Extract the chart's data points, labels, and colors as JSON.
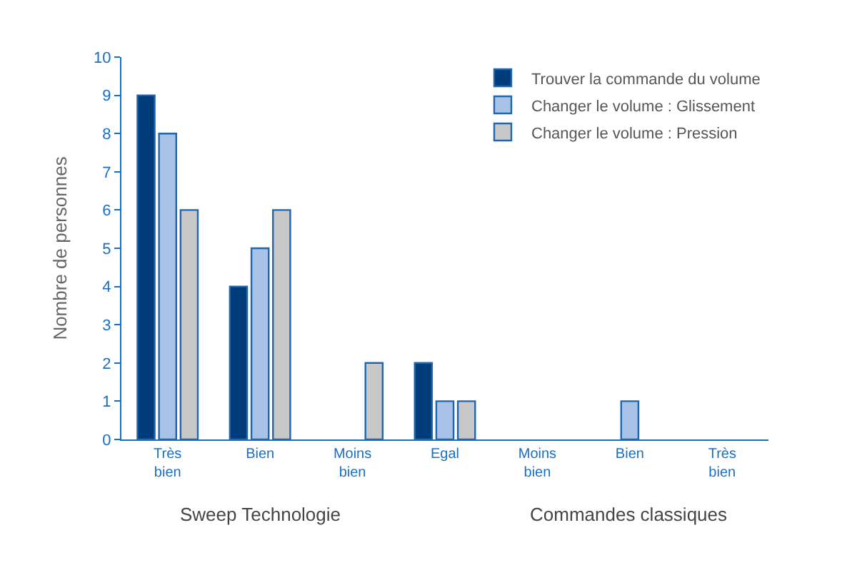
{
  "chart_data": {
    "type": "bar",
    "ylabel": "Nombre de personnes",
    "categories": [
      "Très bien",
      "Bien",
      "Moins bien",
      "Egal",
      "Moins bien",
      "Bien",
      "Très bien"
    ],
    "series": [
      {
        "name": "Trouver la commande du volume",
        "color": "#003b7a",
        "values": [
          9,
          4,
          0,
          2,
          0,
          0,
          0
        ]
      },
      {
        "name": "Changer le volume : Glissement",
        "color": "#a9c3e8",
        "values": [
          8,
          5,
          0,
          1,
          0,
          1,
          0
        ]
      },
      {
        "name": "Changer le volume : Pression",
        "color": "#c8c8c8",
        "values": [
          6,
          6,
          2,
          1,
          0,
          0,
          0
        ]
      }
    ],
    "annotations": [
      "Sweep Technologie",
      "Commandes classiques"
    ],
    "ylim": [
      0,
      10
    ],
    "yticks": [
      0,
      1,
      2,
      3,
      4,
      5,
      6,
      7,
      8,
      9,
      10
    ],
    "legend": "top right"
  }
}
